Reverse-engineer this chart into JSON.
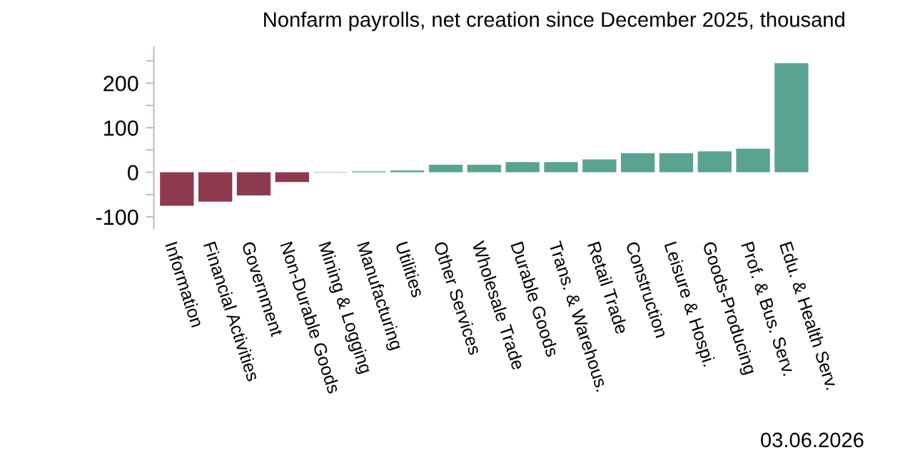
{
  "chart_data": {
    "type": "bar",
    "title": "Nonfarm payrolls, net creation since December 2025, thousand",
    "categories": [
      "Information",
      "Financial Activities",
      "Government",
      "Non-Durable Goods",
      "Mining & Logging",
      "Manufacturing",
      "Utilities",
      "Other Services",
      "Wholesale Trade",
      "Durable Goods",
      "Trans. & Warehous.",
      "Retail Trade",
      "Construction",
      "Leisure & Hospi.",
      "Goods-Producing",
      "Prof. & Bus. Serv.",
      "Edu. & Health Serv."
    ],
    "values": [
      -75,
      -66,
      -52,
      -22,
      1,
      2,
      4,
      17,
      17,
      23,
      23,
      29,
      43,
      43,
      47,
      53,
      245
    ],
    "colors": [
      "#8e3b4f",
      "#8e3b4f",
      "#8e3b4f",
      "#8e3b4f",
      "#5ba391",
      "#5ba391",
      "#5ba391",
      "#5ba391",
      "#5ba391",
      "#5ba391",
      "#5ba391",
      "#5ba391",
      "#5ba391",
      "#5ba391",
      "#5ba391",
      "#5ba391",
      "#5ba391"
    ],
    "ylim": [
      -125,
      280
    ],
    "yticks": [
      -100,
      {
        "value": -50,
        "label": null
      },
      0,
      {
        "value": 50,
        "label": null
      },
      100,
      {
        "value": 150,
        "label": null
      },
      200,
      {
        "value": 250,
        "label": null
      }
    ],
    "grid": false,
    "annotations": [
      "03.06.2026"
    ]
  }
}
